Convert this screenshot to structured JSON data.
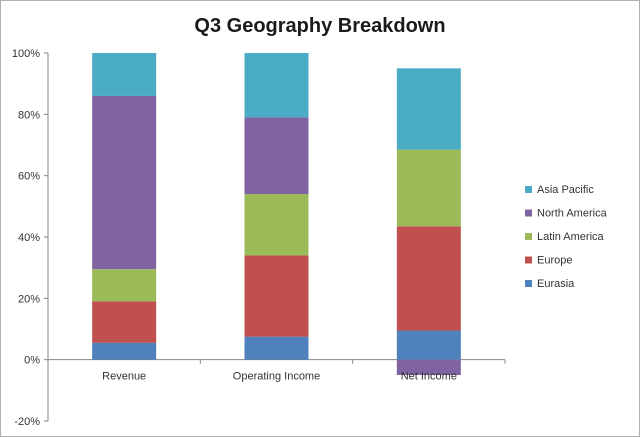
{
  "chart_data": {
    "type": "bar",
    "stacked": true,
    "title": "Q3 Geography Breakdown",
    "xlabel": "",
    "ylabel": "",
    "ylim": [
      -20,
      100
    ],
    "yticks": [
      -20,
      0,
      20,
      40,
      60,
      80,
      100
    ],
    "ytick_format": "percent",
    "grid": false,
    "legend_position": "right",
    "categories": [
      "Revenue",
      "Operating Income",
      "Net Income"
    ],
    "series": [
      {
        "name": "Eurasia",
        "color": "#4f81bd",
        "values": [
          5.5,
          7.5,
          9.5
        ]
      },
      {
        "name": "Europe",
        "color": "#c0504d",
        "values": [
          13.5,
          26.5,
          34
        ]
      },
      {
        "name": "Latin America",
        "color": "#9bbb59",
        "values": [
          10.5,
          20,
          25
        ]
      },
      {
        "name": "North America",
        "color": "#8064a2",
        "values": [
          56.5,
          25,
          -5
        ]
      },
      {
        "name": "Asia Pacific",
        "color": "#4bacc6",
        "values": [
          14,
          21,
          26.5
        ]
      }
    ],
    "legend_order": [
      "Asia Pacific",
      "North America",
      "Latin America",
      "Europe",
      "Eurasia"
    ]
  }
}
